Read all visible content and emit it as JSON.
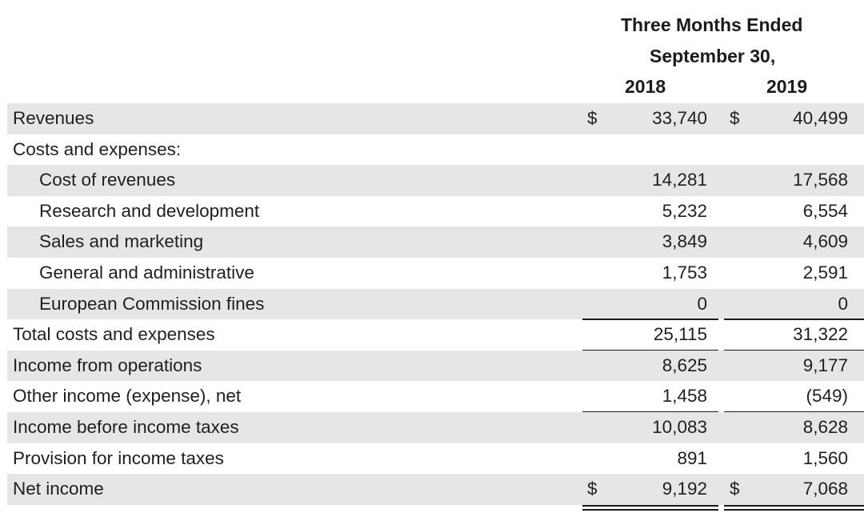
{
  "header": {
    "title_line1": "Three Months Ended",
    "title_line2": "September 30,",
    "year1": "2018",
    "year2": "2019"
  },
  "rows": [
    {
      "label": "Revenues",
      "cur1": "$",
      "v1": "33,740",
      "cur2": "$",
      "v2": "40,499"
    },
    {
      "label": "Costs and expenses:",
      "cur1": "",
      "v1": "",
      "cur2": "",
      "v2": ""
    },
    {
      "label": "Cost of revenues",
      "cur1": "",
      "v1": "14,281",
      "cur2": "",
      "v2": "17,568"
    },
    {
      "label": "Research and development",
      "cur1": "",
      "v1": "5,232",
      "cur2": "",
      "v2": "6,554"
    },
    {
      "label": "Sales and marketing",
      "cur1": "",
      "v1": "3,849",
      "cur2": "",
      "v2": "4,609"
    },
    {
      "label": "General and administrative",
      "cur1": "",
      "v1": "1,753",
      "cur2": "",
      "v2": "2,591"
    },
    {
      "label": "European Commission fines",
      "cur1": "",
      "v1": "0",
      "cur2": "",
      "v2": "0"
    },
    {
      "label": "Total costs and expenses",
      "cur1": "",
      "v1": "25,115",
      "cur2": "",
      "v2": "31,322"
    },
    {
      "label": "Income from operations",
      "cur1": "",
      "v1": "8,625",
      "cur2": "",
      "v2": "9,177"
    },
    {
      "label": "Other income (expense), net",
      "cur1": "",
      "v1": "1,458",
      "cur2": "",
      "v2": "(549)"
    },
    {
      "label": "Income before income taxes",
      "cur1": "",
      "v1": "10,083",
      "cur2": "",
      "v2": "8,628"
    },
    {
      "label": "Provision for income taxes",
      "cur1": "",
      "v1": "891",
      "cur2": "",
      "v2": "1,560"
    },
    {
      "label": "Net income",
      "cur1": "$",
      "v1": "9,192",
      "cur2": "$",
      "v2": "7,068"
    }
  ]
}
